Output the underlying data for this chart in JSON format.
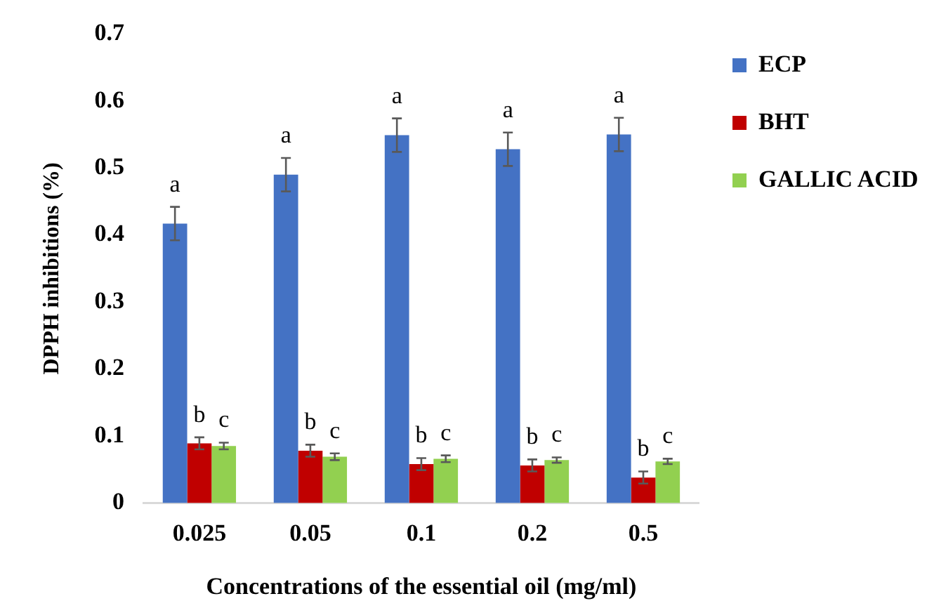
{
  "chart_data": {
    "type": "bar",
    "xlabel": "Concentrations of the essential oil (mg/ml)",
    "ylabel": "DPPH inhibitions (%)",
    "categories": [
      "0.025",
      "0.05",
      "0.1",
      "0.2",
      "0.5"
    ],
    "series": [
      {
        "name": "ECP",
        "color": "#4472c4",
        "values": [
          0.417,
          0.49,
          0.549,
          0.528,
          0.55
        ],
        "errors": [
          0.025,
          0.025,
          0.025,
          0.025,
          0.025
        ],
        "value_labels": [
          "a",
          "a",
          "a",
          "a",
          "a"
        ]
      },
      {
        "name": "BHT",
        "color": "#c00000",
        "values": [
          0.089,
          0.078,
          0.058,
          0.056,
          0.038
        ],
        "errors": [
          0.009,
          0.009,
          0.009,
          0.009,
          0.009
        ],
        "value_labels": [
          "b",
          "b",
          "b",
          "b",
          "b"
        ]
      },
      {
        "name": "GALLIC ACID",
        "color": "#92d050",
        "values": [
          0.085,
          0.069,
          0.066,
          0.064,
          0.062
        ],
        "errors": [
          0.005,
          0.005,
          0.005,
          0.004,
          0.004
        ],
        "value_labels": [
          "c",
          "c",
          "c",
          "c",
          "c"
        ]
      }
    ],
    "ylim": [
      0,
      0.7
    ],
    "yticks": [
      0,
      0.1,
      0.2,
      0.3,
      0.4,
      0.5,
      0.6,
      0.7
    ],
    "grid": false,
    "legend": "top right"
  }
}
